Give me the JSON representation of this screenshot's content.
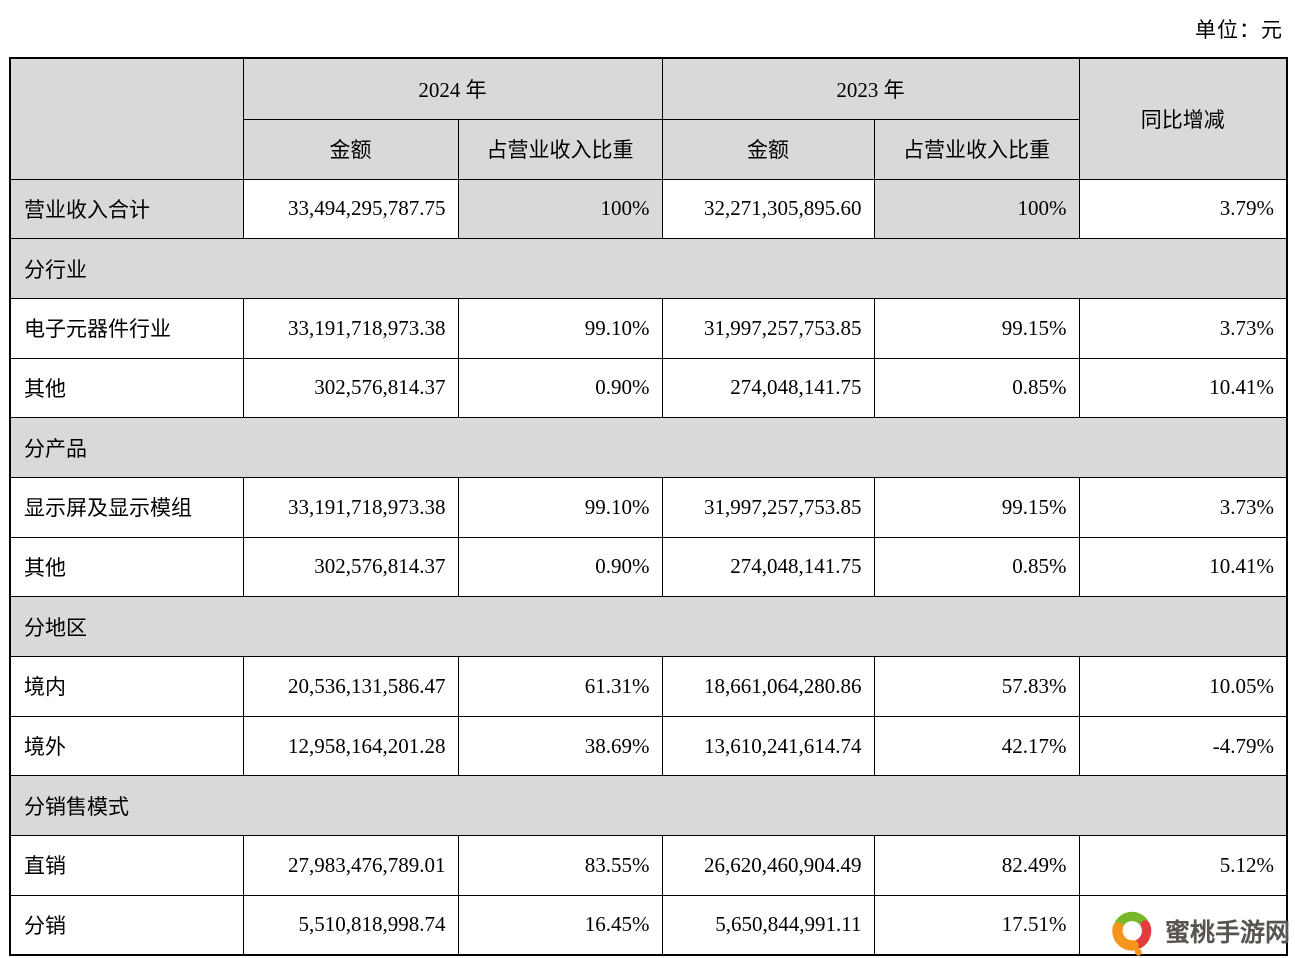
{
  "unit_label": "单位：元",
  "colors": {
    "header_fill": "#d9d9d9",
    "border": "#000000",
    "watermark_text": "#585450",
    "logo_green": "#76b82a",
    "logo_red": "#e23e3e",
    "logo_orange": "#f6951d"
  },
  "table": {
    "header": {
      "year_2024": "2024 年",
      "year_2023": "2023 年",
      "amount": "金额",
      "share": "占营业收入比重",
      "yoy": "同比增减"
    },
    "rows": [
      {
        "type": "data",
        "shaded": true,
        "label": "营业收入合计",
        "amount_2024": "33,494,295,787.75",
        "share_2024": "100%",
        "amount_2023": "32,271,305,895.60",
        "share_2023": "100%",
        "yoy": "3.79%"
      },
      {
        "type": "section",
        "label": "分行业"
      },
      {
        "type": "data",
        "label": "电子元器件行业",
        "amount_2024": "33,191,718,973.38",
        "share_2024": "99.10%",
        "amount_2023": "31,997,257,753.85",
        "share_2023": "99.15%",
        "yoy": "3.73%"
      },
      {
        "type": "data",
        "label": "其他",
        "amount_2024": "302,576,814.37",
        "share_2024": "0.90%",
        "amount_2023": "274,048,141.75",
        "share_2023": "0.85%",
        "yoy": "10.41%"
      },
      {
        "type": "section",
        "label": "分产品"
      },
      {
        "type": "data",
        "label": "显示屏及显示模组",
        "amount_2024": "33,191,718,973.38",
        "share_2024": "99.10%",
        "amount_2023": "31,997,257,753.85",
        "share_2023": "99.15%",
        "yoy": "3.73%"
      },
      {
        "type": "data",
        "label": "其他",
        "amount_2024": "302,576,814.37",
        "share_2024": "0.90%",
        "amount_2023": "274,048,141.75",
        "share_2023": "0.85%",
        "yoy": "10.41%"
      },
      {
        "type": "section",
        "label": "分地区"
      },
      {
        "type": "data",
        "label": "境内",
        "amount_2024": "20,536,131,586.47",
        "share_2024": "61.31%",
        "amount_2023": "18,661,064,280.86",
        "share_2023": "57.83%",
        "yoy": "10.05%"
      },
      {
        "type": "data",
        "label": "境外",
        "amount_2024": "12,958,164,201.28",
        "share_2024": "38.69%",
        "amount_2023": "13,610,241,614.74",
        "share_2023": "42.17%",
        "yoy": "-4.79%"
      },
      {
        "type": "section",
        "label": "分销售模式"
      },
      {
        "type": "data",
        "label": "直销",
        "amount_2024": "27,983,476,789.01",
        "share_2024": "83.55%",
        "amount_2023": "26,620,460,904.49",
        "share_2023": "82.49%",
        "yoy": "5.12%"
      },
      {
        "type": "data",
        "label": "分销",
        "amount_2024": "5,510,818,998.74",
        "share_2024": "16.45%",
        "amount_2023": "5,650,844,991.11",
        "share_2023": "17.51%",
        "yoy": ""
      }
    ]
  },
  "watermark": {
    "text": "蜜桃手游网"
  }
}
